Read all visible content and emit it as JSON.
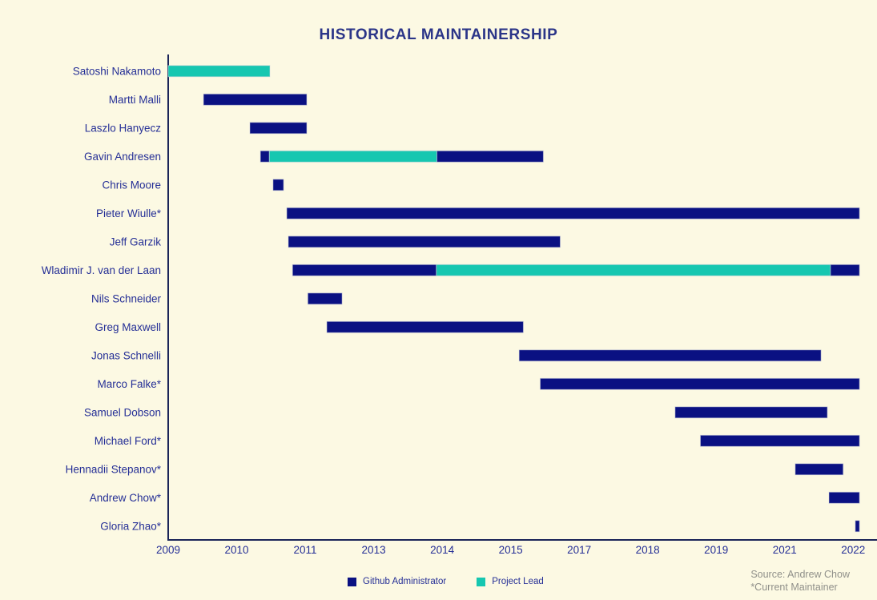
{
  "title": "HISTORICAL MAINTAINERSHIP",
  "colors": {
    "background": "#FCF9E3",
    "bar_admin": "#0A1182",
    "bar_lead": "#16C7B0",
    "label_text": "#252F96",
    "tick_text": "#252F96",
    "title_text": "#2B3588",
    "axis": "#1B2559",
    "source_text": "#90908A"
  },
  "legend": [
    {
      "key": "admin",
      "label": "Github Administrator",
      "color": "#0A1182"
    },
    {
      "key": "lead",
      "label": "Project Lead",
      "color": "#16C7B0"
    }
  ],
  "source": {
    "line1": "Source: Andrew Chow",
    "line2": "*Current Maintainer"
  },
  "chart_data": {
    "type": "bar",
    "subtype": "gantt-timeline",
    "title": "HISTORICAL MAINTAINERSHIP",
    "xlabel": "",
    "ylabel": "",
    "grid": false,
    "legend_position": "bottom-center",
    "xlim": [
      2009,
      2022.3
    ],
    "x_tick_years": [
      2009,
      2010.3,
      2011.6,
      2012.9,
      2014.2,
      2015.5,
      2016.8,
      2018.1,
      2019.4,
      2020.7,
      2022
    ],
    "x_tick_labels": [
      "2009",
      "2010",
      "2011",
      "2013",
      "2014",
      "2015",
      "2017",
      "2018",
      "2019",
      "2021",
      "2022"
    ],
    "roles": {
      "admin": "Github Administrator",
      "lead": "Project Lead"
    },
    "rows": [
      {
        "name": "Satoshi Nakamoto",
        "segments": [
          {
            "role": "lead",
            "start": 2009.0,
            "end": 2010.93
          }
        ]
      },
      {
        "name": "Martti Malli",
        "segments": [
          {
            "role": "admin",
            "start": 2009.67,
            "end": 2011.63
          }
        ]
      },
      {
        "name": "Laszlo Hanyecz",
        "segments": [
          {
            "role": "admin",
            "start": 2010.55,
            "end": 2011.63
          }
        ]
      },
      {
        "name": "Gavin Andresen",
        "segments": [
          {
            "role": "admin",
            "start": 2010.75,
            "end": 2010.92
          },
          {
            "role": "lead",
            "start": 2010.92,
            "end": 2014.1
          },
          {
            "role": "admin",
            "start": 2014.1,
            "end": 2016.12
          }
        ]
      },
      {
        "name": "Chris Moore",
        "segments": [
          {
            "role": "admin",
            "start": 2010.99,
            "end": 2011.19
          }
        ]
      },
      {
        "name": "Pieter Wiulle*",
        "segments": [
          {
            "role": "admin",
            "start": 2011.25,
            "end": 2022.12
          }
        ]
      },
      {
        "name": "Jeff Garzik",
        "segments": [
          {
            "role": "admin",
            "start": 2011.28,
            "end": 2016.44
          }
        ]
      },
      {
        "name": "Wladimir J. van der Laan",
        "segments": [
          {
            "role": "admin",
            "start": 2011.36,
            "end": 2014.09
          },
          {
            "role": "lead",
            "start": 2014.09,
            "end": 2021.57
          },
          {
            "role": "admin",
            "start": 2021.57,
            "end": 2022.12
          }
        ]
      },
      {
        "name": "Nils Schneider",
        "segments": [
          {
            "role": "admin",
            "start": 2011.65,
            "end": 2012.3
          }
        ]
      },
      {
        "name": "Greg Maxwell",
        "segments": [
          {
            "role": "admin",
            "start": 2012.01,
            "end": 2015.74
          }
        ]
      },
      {
        "name": "Jonas Schnelli",
        "segments": [
          {
            "role": "admin",
            "start": 2015.66,
            "end": 2021.39
          }
        ]
      },
      {
        "name": "Marco Falke*",
        "segments": [
          {
            "role": "admin",
            "start": 2016.06,
            "end": 2022.12
          }
        ]
      },
      {
        "name": "Samuel Dobson",
        "segments": [
          {
            "role": "admin",
            "start": 2018.62,
            "end": 2021.51
          }
        ]
      },
      {
        "name": "Michael Ford*",
        "segments": [
          {
            "role": "admin",
            "start": 2019.1,
            "end": 2022.12
          }
        ]
      },
      {
        "name": "Hennadii Stepanov*",
        "segments": [
          {
            "role": "admin",
            "start": 2020.9,
            "end": 2021.81
          }
        ]
      },
      {
        "name": "Andrew Chow*",
        "segments": [
          {
            "role": "admin",
            "start": 2021.54,
            "end": 2022.12
          }
        ]
      },
      {
        "name": "Gloria Zhao*",
        "segments": [
          {
            "role": "admin",
            "start": 2022.04,
            "end": 2022.12
          }
        ]
      }
    ]
  }
}
